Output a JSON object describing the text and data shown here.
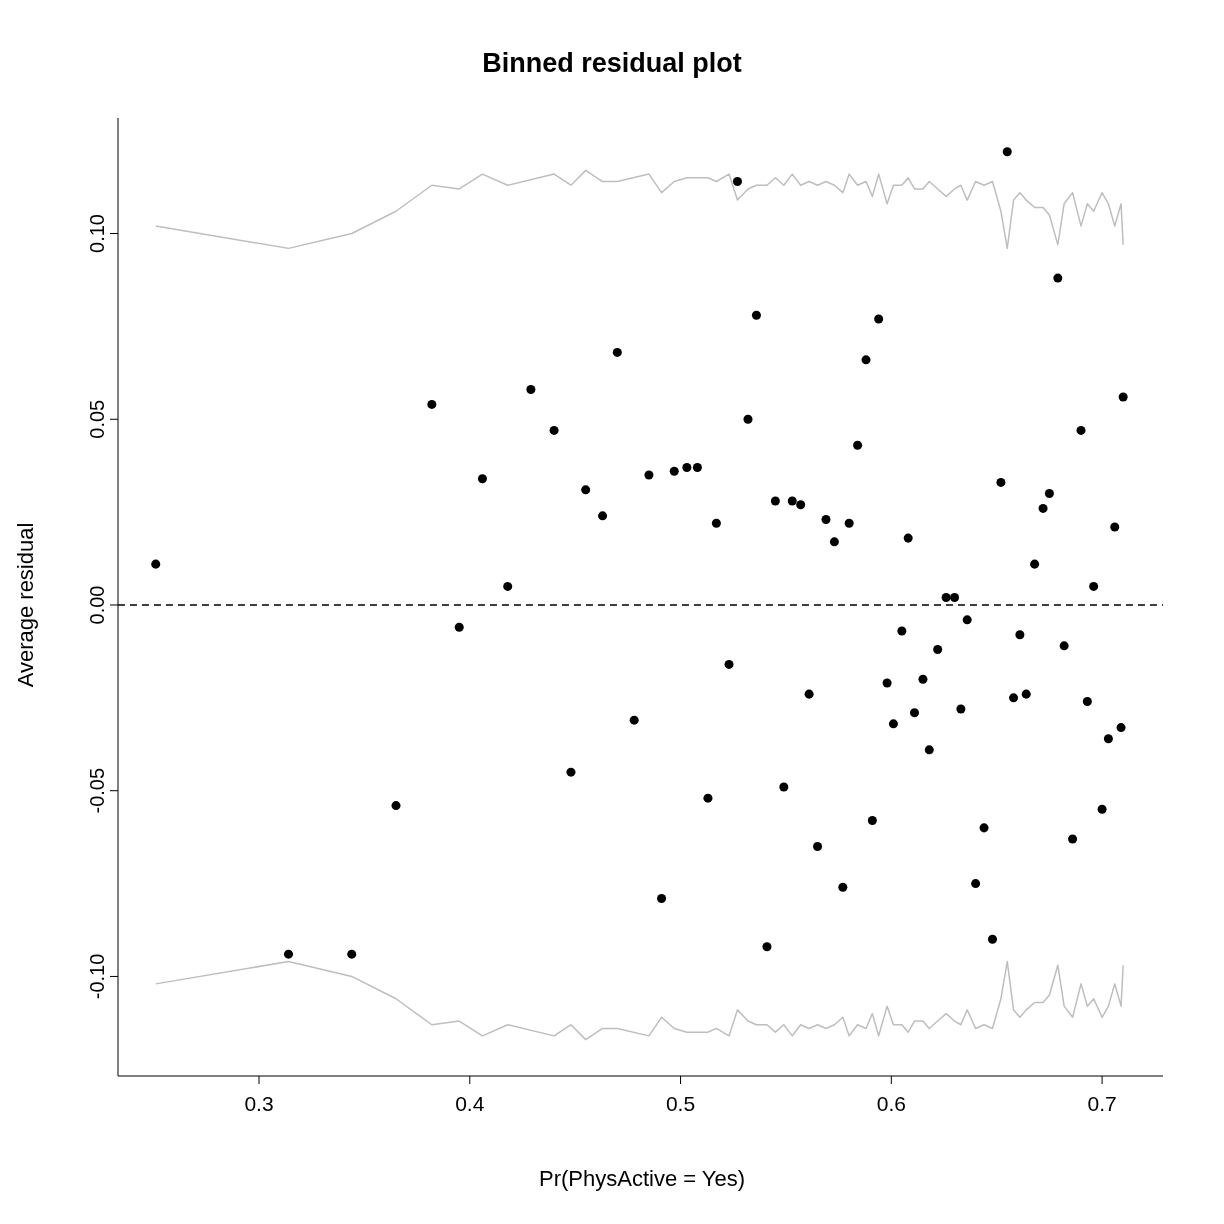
{
  "chart_data": {
    "type": "scatter",
    "title": "Binned residual plot",
    "xlabel": "Pr(PhysActive = Yes)",
    "ylabel": "Average residual",
    "xlim": [
      0.2331,
      0.7289
    ],
    "xticks": [
      0.3,
      0.4,
      0.5,
      0.6,
      0.7
    ],
    "ylim": [
      -0.1268,
      0.1311
    ],
    "yticks": [
      {
        "value": -0.1,
        "label": "-0.10"
      },
      {
        "value": -0.05,
        "label": "-0.05"
      },
      {
        "value": 0,
        "label": "0.00"
      },
      {
        "value": 0.05,
        "label": "0.05"
      },
      {
        "value": 0.1,
        "label": "0.10"
      }
    ],
    "grid": false,
    "ref_lines": [
      {
        "axis": "y",
        "value": 0,
        "color": "#000000",
        "line_style": "dashed"
      }
    ],
    "series": [
      {
        "color": "#000000",
        "marker": "circle",
        "x": [
          0.251,
          0.314,
          0.344,
          0.365,
          0.382,
          0.395,
          0.406,
          0.418,
          0.429,
          0.44,
          0.448,
          0.455,
          0.463,
          0.47,
          0.478,
          0.485,
          0.491,
          0.497,
          0.503,
          0.508,
          0.513,
          0.517,
          0.523,
          0.527,
          0.532,
          0.536,
          0.541,
          0.545,
          0.549,
          0.553,
          0.557,
          0.561,
          0.565,
          0.569,
          0.573,
          0.577,
          0.58,
          0.584,
          0.588,
          0.591,
          0.594,
          0.598,
          0.601,
          0.605,
          0.608,
          0.611,
          0.615,
          0.618,
          0.622,
          0.626,
          0.63,
          0.633,
          0.636,
          0.64,
          0.644,
          0.648,
          0.652,
          0.655,
          0.658,
          0.661,
          0.664,
          0.668,
          0.672,
          0.675,
          0.679,
          0.682,
          0.686,
          0.69,
          0.693,
          0.696,
          0.7,
          0.703,
          0.706,
          0.709,
          0.71
        ],
        "values": [
          0.011,
          -0.094,
          -0.094,
          -0.054,
          0.054,
          -0.006,
          0.034,
          0.005,
          0.058,
          0.047,
          -0.045,
          0.031,
          0.024,
          0.068,
          -0.031,
          0.035,
          -0.079,
          0.036,
          0.037,
          0.037,
          -0.052,
          0.022,
          -0.016,
          0.114,
          0.05,
          0.078,
          -0.092,
          0.028,
          -0.049,
          0.028,
          0.027,
          -0.024,
          -0.065,
          0.023,
          0.017,
          -0.076,
          0.022,
          0.043,
          0.066,
          -0.058,
          0.077,
          -0.021,
          -0.032,
          -0.007,
          0.018,
          -0.029,
          -0.02,
          -0.039,
          -0.012,
          0.002,
          0.002,
          -0.028,
          -0.004,
          -0.075,
          -0.06,
          -0.09,
          0.033,
          0.122,
          -0.025,
          -0.008,
          -0.024,
          0.011,
          0.026,
          0.03,
          0.088,
          -0.011,
          -0.063,
          0.047,
          -0.026,
          0.005,
          -0.055,
          -0.036,
          0.021,
          -0.033,
          0.056
        ]
      },
      {
        "type": "line",
        "color": "#bebebe",
        "x": [
          0.251,
          0.314,
          0.344,
          0.365,
          0.382,
          0.395,
          0.406,
          0.418,
          0.44,
          0.448,
          0.455,
          0.463,
          0.47,
          0.485,
          0.491,
          0.497,
          0.503,
          0.513,
          0.517,
          0.523,
          0.527,
          0.532,
          0.536,
          0.541,
          0.545,
          0.549,
          0.553,
          0.557,
          0.561,
          0.565,
          0.569,
          0.573,
          0.577,
          0.58,
          0.584,
          0.588,
          0.591,
          0.594,
          0.598,
          0.601,
          0.605,
          0.608,
          0.611,
          0.615,
          0.618,
          0.622,
          0.626,
          0.63,
          0.633,
          0.636,
          0.64,
          0.644,
          0.648,
          0.652,
          0.655,
          0.658,
          0.661,
          0.664,
          0.668,
          0.672,
          0.675,
          0.679,
          0.682,
          0.686,
          0.69,
          0.693,
          0.696,
          0.7,
          0.703,
          0.706,
          0.709,
          0.71
        ],
        "values": [
          0.102,
          0.096,
          0.1,
          0.106,
          0.113,
          0.112,
          0.116,
          0.113,
          0.116,
          0.113,
          0.117,
          0.114,
          0.114,
          0.116,
          0.111,
          0.114,
          0.115,
          0.115,
          0.114,
          0.116,
          0.109,
          0.112,
          0.113,
          0.113,
          0.115,
          0.113,
          0.116,
          0.113,
          0.114,
          0.113,
          0.114,
          0.113,
          0.111,
          0.116,
          0.113,
          0.114,
          0.11,
          0.116,
          0.108,
          0.113,
          0.113,
          0.115,
          0.112,
          0.112,
          0.114,
          0.112,
          0.11,
          0.112,
          0.113,
          0.109,
          0.114,
          0.113,
          0.114,
          0.106,
          0.096,
          0.109,
          0.111,
          0.109,
          0.107,
          0.107,
          0.105,
          0.097,
          0.108,
          0.111,
          0.102,
          0.108,
          0.106,
          0.111,
          0.108,
          0.102,
          0.108,
          0.097
        ]
      },
      {
        "type": "line",
        "color": "#bebebe",
        "x": [
          0.251,
          0.314,
          0.344,
          0.365,
          0.382,
          0.395,
          0.406,
          0.418,
          0.44,
          0.448,
          0.455,
          0.463,
          0.47,
          0.485,
          0.491,
          0.497,
          0.503,
          0.513,
          0.517,
          0.523,
          0.527,
          0.532,
          0.536,
          0.541,
          0.545,
          0.549,
          0.553,
          0.557,
          0.561,
          0.565,
          0.569,
          0.573,
          0.577,
          0.58,
          0.584,
          0.588,
          0.591,
          0.594,
          0.598,
          0.601,
          0.605,
          0.608,
          0.611,
          0.615,
          0.618,
          0.622,
          0.626,
          0.63,
          0.633,
          0.636,
          0.64,
          0.644,
          0.648,
          0.652,
          0.655,
          0.658,
          0.661,
          0.664,
          0.668,
          0.672,
          0.675,
          0.679,
          0.682,
          0.686,
          0.69,
          0.693,
          0.696,
          0.7,
          0.703,
          0.706,
          0.709,
          0.71
        ],
        "values": [
          -0.102,
          -0.096,
          -0.1,
          -0.106,
          -0.113,
          -0.112,
          -0.116,
          -0.113,
          -0.116,
          -0.113,
          -0.117,
          -0.114,
          -0.114,
          -0.116,
          -0.111,
          -0.114,
          -0.115,
          -0.115,
          -0.114,
          -0.116,
          -0.109,
          -0.112,
          -0.113,
          -0.113,
          -0.115,
          -0.113,
          -0.116,
          -0.113,
          -0.114,
          -0.113,
          -0.114,
          -0.113,
          -0.111,
          -0.116,
          -0.113,
          -0.114,
          -0.11,
          -0.116,
          -0.108,
          -0.113,
          -0.113,
          -0.115,
          -0.112,
          -0.112,
          -0.114,
          -0.112,
          -0.11,
          -0.112,
          -0.113,
          -0.109,
          -0.114,
          -0.113,
          -0.114,
          -0.106,
          -0.096,
          -0.109,
          -0.111,
          -0.109,
          -0.107,
          -0.107,
          -0.105,
          -0.097,
          -0.108,
          -0.111,
          -0.102,
          -0.108,
          -0.106,
          -0.111,
          -0.108,
          -0.102,
          -0.108,
          -0.097
        ]
      }
    ]
  }
}
